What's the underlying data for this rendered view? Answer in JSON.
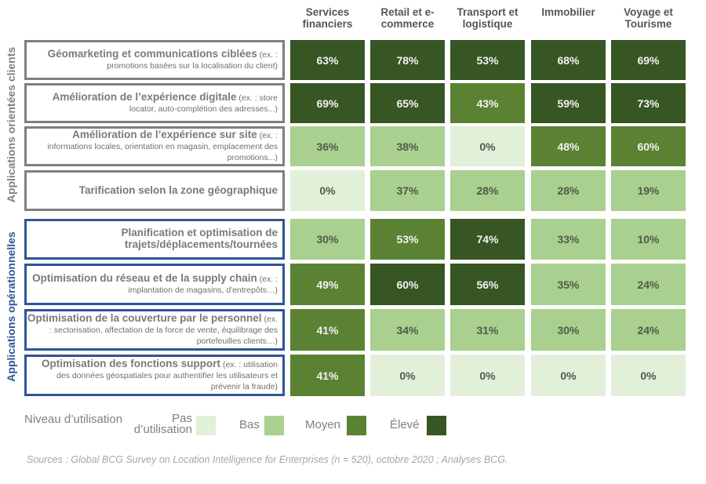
{
  "chart_data": {
    "type": "heatmap",
    "columns": [
      "Services financiers",
      "Retail et e-commerce",
      "Transport et logistique",
      "Immobilier",
      "Voyage et Tourisme"
    ],
    "groups": [
      {
        "name": "Applications orientées clients",
        "color": "#7f7f7f",
        "rows": [
          {
            "title": "Géomarketing et communications ciblées",
            "detail": "(ex. : promotions basées sur la localisation du client)",
            "values": [
              63,
              78,
              53,
              68,
              69
            ],
            "levels": [
              "eleve",
              "eleve",
              "eleve",
              "eleve",
              "eleve"
            ]
          },
          {
            "title": "Amélioration de l’expérience digitale",
            "detail": "(ex. : store locator, auto-complétion des adresses...)",
            "values": [
              69,
              65,
              43,
              59,
              73
            ],
            "levels": [
              "eleve",
              "eleve",
              "moyen",
              "eleve",
              "eleve"
            ]
          },
          {
            "title": "Amélioration de l’expérience sur site",
            "detail": "(ex. : informations locales, orientation en magasin, emplacement des promotions...)",
            "values": [
              36,
              38,
              0,
              48,
              60
            ],
            "levels": [
              "bas",
              "bas",
              "pas",
              "moyen",
              "moyen"
            ]
          },
          {
            "title": "Tarification selon la zone géographique",
            "detail": "",
            "values": [
              0,
              37,
              28,
              28,
              19
            ],
            "levels": [
              "pas",
              "bas",
              "bas",
              "bas",
              "bas"
            ]
          }
        ]
      },
      {
        "name": "Applications opérationnelles",
        "color": "#2f5597",
        "rows": [
          {
            "title": "Planification et optimisation de trajets/déplacements/tournées",
            "detail": "",
            "values": [
              30,
              53,
              74,
              33,
              10
            ],
            "levels": [
              "bas",
              "moyen",
              "eleve",
              "bas",
              "bas"
            ]
          },
          {
            "title": "Optimisation du réseau et de la supply chain",
            "detail": "(ex. : implantation de magasins, d'entrepôts…)",
            "values": [
              49,
              60,
              56,
              35,
              24
            ],
            "levels": [
              "moyen",
              "eleve",
              "eleve",
              "bas",
              "bas"
            ]
          },
          {
            "title": "Optimisation de la couverture par le personnel",
            "detail": "(ex. : sectorisation, affectation de la force de vente, équilibrage des portefeuilles clients…)",
            "values": [
              41,
              34,
              31,
              30,
              24
            ],
            "levels": [
              "moyen",
              "bas",
              "bas",
              "bas",
              "bas"
            ]
          },
          {
            "title": "Optimisation des fonctions support",
            "detail": "(ex. : utilisation des données géospatiales pour authentifier les utilisateurs et prévenir la fraude)",
            "values": [
              41,
              0,
              0,
              0,
              0
            ],
            "levels": [
              "moyen",
              "pas",
              "pas",
              "pas",
              "pas"
            ]
          }
        ]
      }
    ],
    "legend": {
      "title": "Niveau d’utilisation",
      "items": [
        {
          "key": "pas",
          "label": "Pas d’utilisation",
          "color": "#e2efd9"
        },
        {
          "key": "bas",
          "label": "Bas",
          "color": "#a9d08e"
        },
        {
          "key": "moyen",
          "label": "Moyen",
          "color": "#5b8233"
        },
        {
          "key": "eleve",
          "label": "Élevé",
          "color": "#375623"
        }
      ]
    },
    "value_suffix": "%"
  },
  "source": "Sources : Global BCG Survey on Location Intelligence for Enterprises (n = 520), octobre 2020 ; Analyses BCG."
}
